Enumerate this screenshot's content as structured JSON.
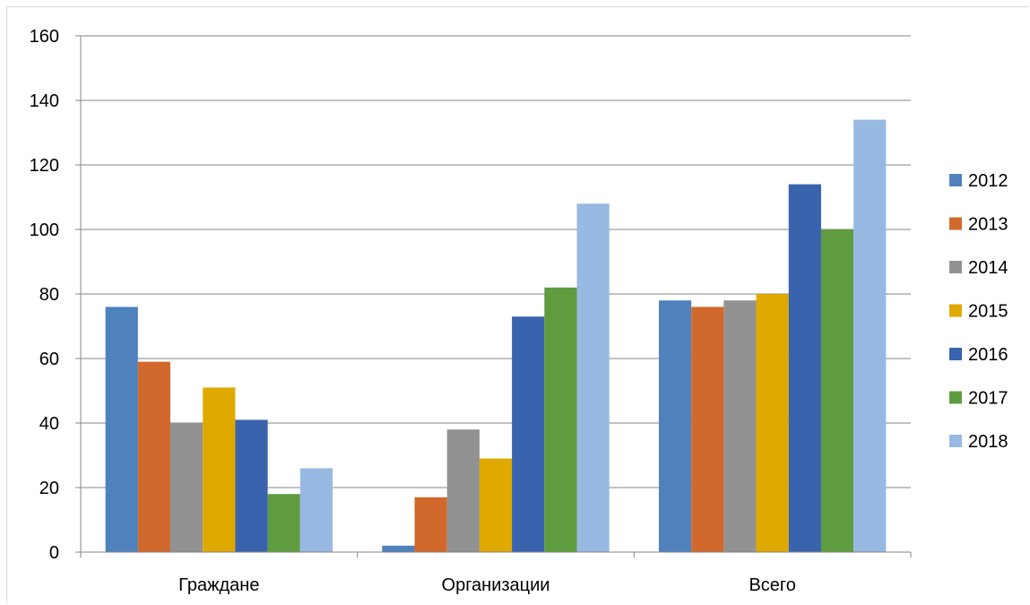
{
  "chart_data": {
    "type": "bar",
    "title": "",
    "xlabel": "",
    "ylabel": "",
    "categories": [
      "Граждане",
      "Организации",
      "Всего"
    ],
    "ylim": [
      0,
      160
    ],
    "yticks": [
      0,
      20,
      40,
      60,
      80,
      100,
      120,
      140,
      160
    ],
    "grid": true,
    "legend_position": "right",
    "series": [
      {
        "name": "2012",
        "color": "#4f81bd",
        "values": [
          76,
          2,
          78
        ]
      },
      {
        "name": "2013",
        "color": "#d2692c",
        "values": [
          59,
          17,
          76
        ]
      },
      {
        "name": "2014",
        "color": "#929292",
        "values": [
          40,
          38,
          78
        ]
      },
      {
        "name": "2015",
        "color": "#e0a900",
        "values": [
          51,
          29,
          80
        ]
      },
      {
        "name": "2016",
        "color": "#3a63ad",
        "values": [
          41,
          73,
          114
        ]
      },
      {
        "name": "2017",
        "color": "#5f9c40",
        "values": [
          18,
          82,
          100
        ]
      },
      {
        "name": "2018",
        "color": "#98b9e2",
        "values": [
          26,
          108,
          134
        ]
      }
    ]
  }
}
